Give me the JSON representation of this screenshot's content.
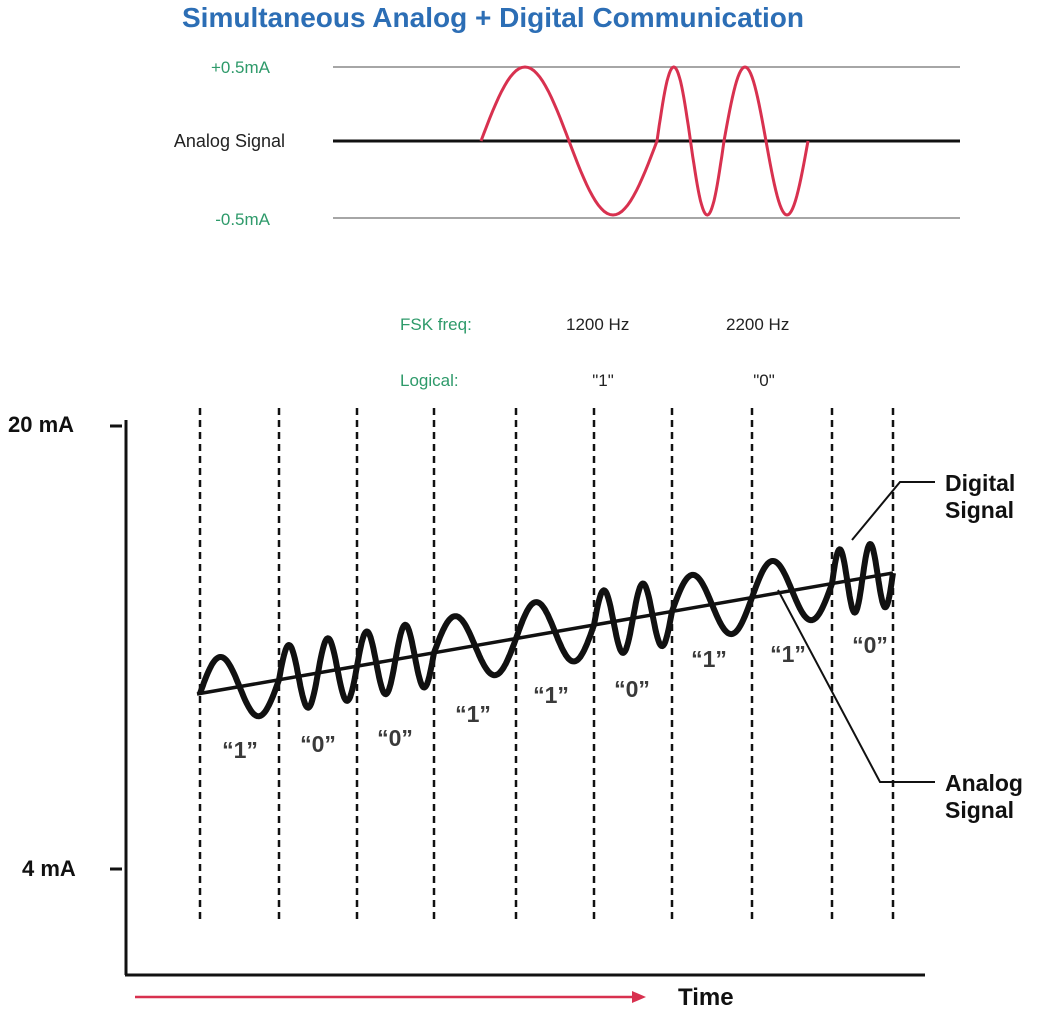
{
  "title": "Simultaneous Analog + Digital Communication",
  "colors": {
    "title": "#2c6eb5",
    "green_text": "#2e9a6a",
    "red_wave": "#d8314f",
    "red_arrow": "#d8314f",
    "line_dark": "#111111",
    "line_gray": "#888888"
  },
  "top_diagram": {
    "plus_label": "+0.5mA",
    "center_label": "Analog Signal",
    "minus_label": "-0.5mA"
  },
  "fsk": {
    "freq_label": "FSK freq:",
    "freq_1": "1200 Hz",
    "freq_0": "2200 Hz",
    "logical_label": "Logical:",
    "logical_1": "\"1\"",
    "logical_0": "\"0\""
  },
  "main_diagram": {
    "y_top_label": "20 mA",
    "y_bottom_label": "4 mA",
    "x_label": "Time",
    "digital_callout": [
      "Digital",
      "Signal"
    ],
    "analog_callout": [
      "Analog",
      "Signal"
    ],
    "bits": [
      {
        "text": "“1”"
      },
      {
        "text": "“0”"
      },
      {
        "text": "“0”"
      },
      {
        "text": "“1”"
      },
      {
        "text": "“1”"
      },
      {
        "text": "“0”"
      },
      {
        "text": "“1”"
      },
      {
        "text": "“1”"
      },
      {
        "text": "“0”"
      }
    ]
  }
}
